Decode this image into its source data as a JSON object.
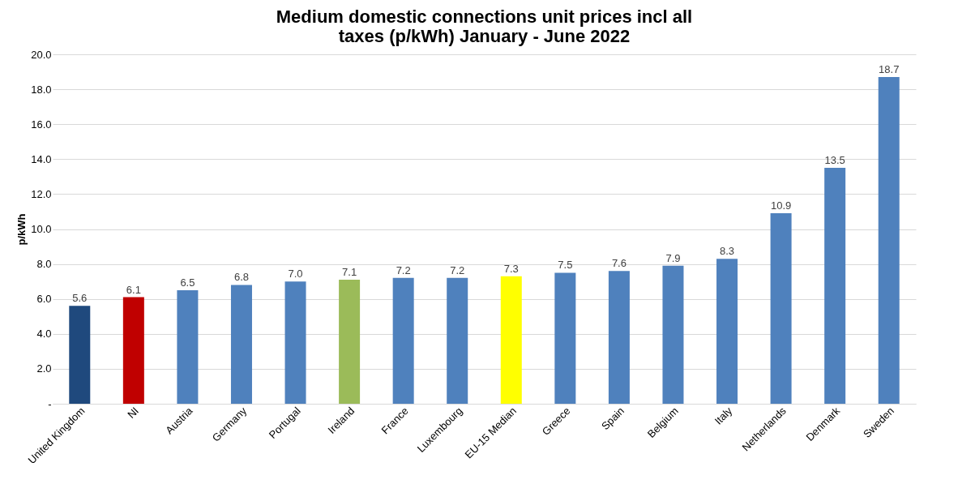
{
  "chart_data": {
    "type": "bar",
    "title": "Medium domestic connections unit prices incl all taxes (p/kWh) January - June 2022",
    "ylabel": "p/kWh",
    "categories": [
      "United Kingdom",
      "NI",
      "Austria",
      "Germany",
      "Portugal",
      "Ireland",
      "France",
      "Luxembourg",
      "EU-15 Median",
      "Greece",
      "Spain",
      "Belgium",
      "Italy",
      "Netherlands",
      "Denmark",
      "Sweden"
    ],
    "values": [
      5.6,
      6.1,
      6.5,
      6.8,
      7.0,
      7.1,
      7.2,
      7.2,
      7.3,
      7.5,
      7.6,
      7.9,
      8.3,
      10.9,
      13.5,
      18.7
    ],
    "value_labels": [
      "5.6",
      "6.1",
      "6.5",
      "6.8",
      "7.0",
      "7.1",
      "7.2",
      "7.2",
      "7.3",
      "7.5",
      "7.6",
      "7.9",
      "8.3",
      "10.9",
      "13.5",
      "18.7"
    ],
    "colors": [
      "#1f497d",
      "#c00000",
      "#4f81bd",
      "#4f81bd",
      "#4f81bd",
      "#9bbb59",
      "#4f81bd",
      "#4f81bd",
      "#ffff00",
      "#4f81bd",
      "#4f81bd",
      "#4f81bd",
      "#4f81bd",
      "#4f81bd",
      "#4f81bd",
      "#4f81bd"
    ],
    "ylim": [
      0,
      20
    ],
    "yticks": [
      {
        "value": 0,
        "label": "-"
      },
      {
        "value": 2,
        "label": "2.0"
      },
      {
        "value": 4,
        "label": "4.0"
      },
      {
        "value": 6,
        "label": "6.0"
      },
      {
        "value": 8,
        "label": "8.0"
      },
      {
        "value": 10,
        "label": "10.0"
      },
      {
        "value": 12,
        "label": "12.0"
      },
      {
        "value": 14,
        "label": "14.0"
      },
      {
        "value": 16,
        "label": "16.0"
      },
      {
        "value": 18,
        "label": "18.0"
      },
      {
        "value": 20,
        "label": "20.0"
      }
    ],
    "grid": "y"
  }
}
